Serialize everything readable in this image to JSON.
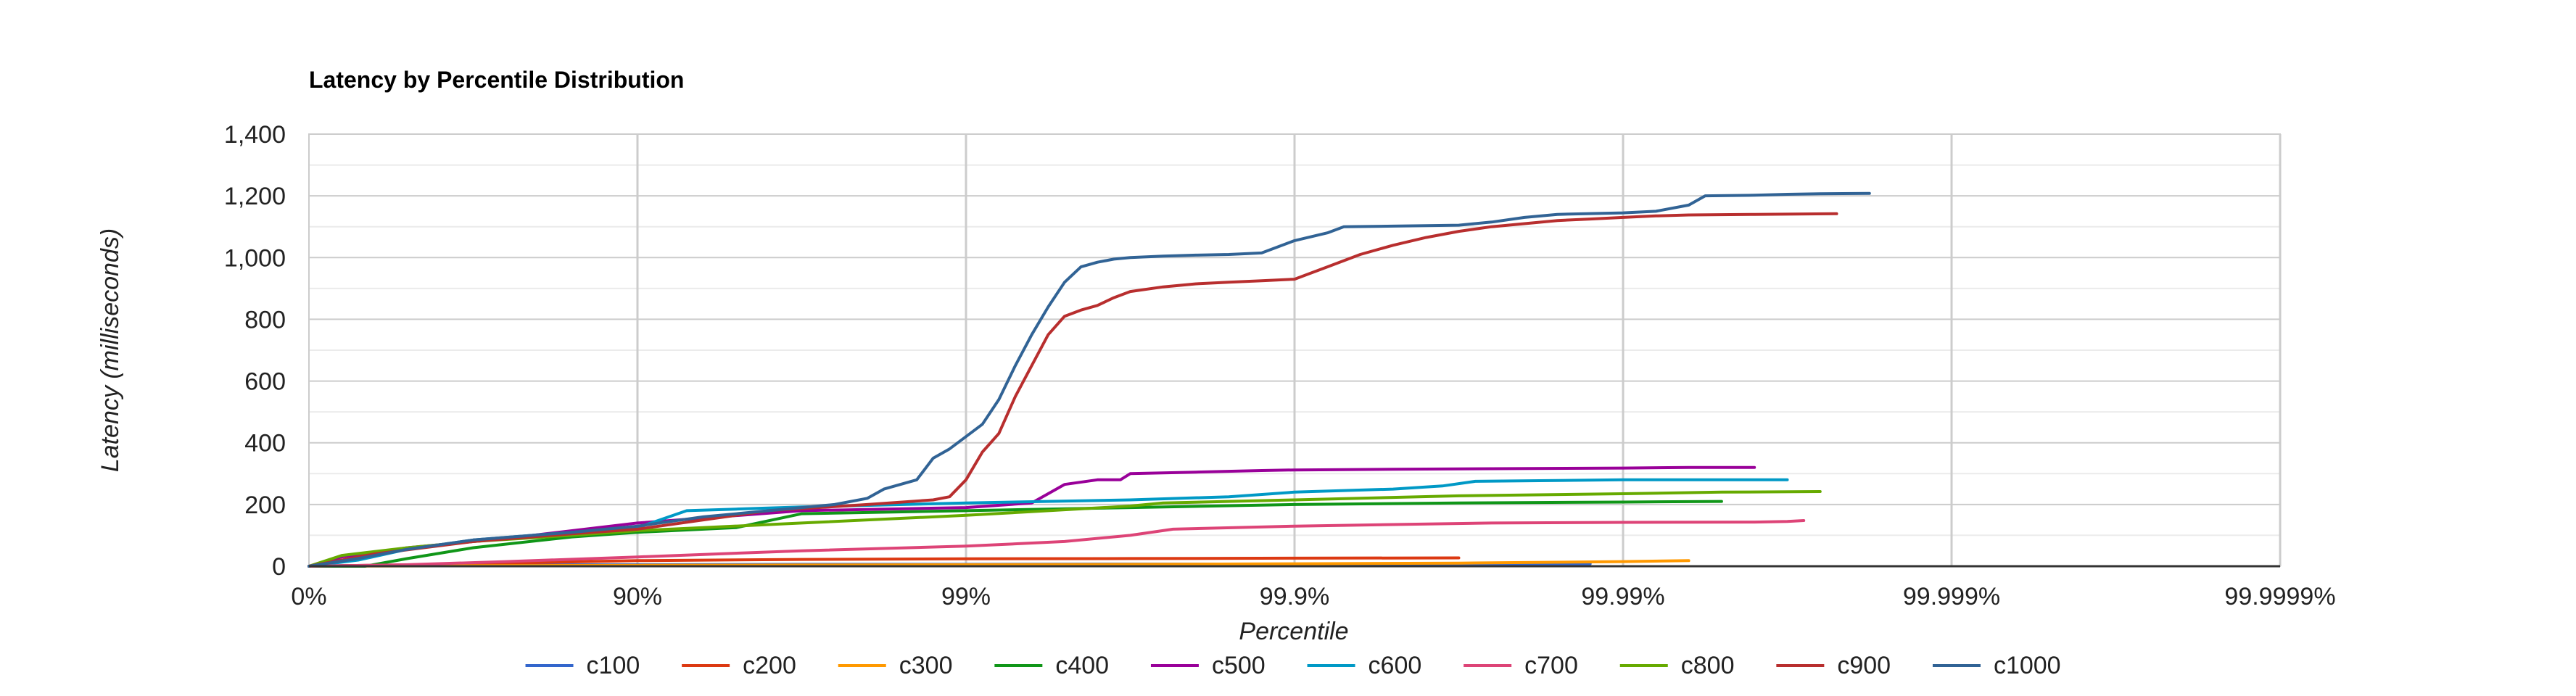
{
  "chart_data": {
    "type": "line",
    "title": "Latency by Percentile Distribution",
    "xlabel": "Percentile",
    "ylabel": "Latency (milliseconds)",
    "x_scale": "log-nines",
    "xlim": [
      0,
      6
    ],
    "ylim": [
      0,
      1400
    ],
    "x_ticks": [
      {
        "nines": 0,
        "label": "0%"
      },
      {
        "nines": 1,
        "label": "90%"
      },
      {
        "nines": 2,
        "label": "99%"
      },
      {
        "nines": 3,
        "label": "99.9%"
      },
      {
        "nines": 4,
        "label": "99.99%"
      },
      {
        "nines": 5,
        "label": "99.999%"
      },
      {
        "nines": 6,
        "label": "99.9999%"
      }
    ],
    "y_ticks": [
      {
        "value": 0,
        "label": "0"
      },
      {
        "value": 200,
        "label": "200"
      },
      {
        "value": 400,
        "label": "400"
      },
      {
        "value": 600,
        "label": "600"
      },
      {
        "value": 800,
        "label": "800"
      },
      {
        "value": 1000,
        "label": "1,000"
      },
      {
        "value": 1200,
        "label": "1,200"
      },
      {
        "value": 1400,
        "label": "1,400"
      }
    ],
    "grid": true,
    "legend_position": "bottom",
    "series": [
      {
        "name": "c100",
        "color": "#3366cc",
        "points": [
          [
            0,
            0
          ],
          [
            0.1,
            2
          ],
          [
            0.3,
            3
          ],
          [
            0.6,
            4
          ],
          [
            1.0,
            5
          ],
          [
            1.5,
            6
          ],
          [
            2.0,
            6
          ],
          [
            2.5,
            7
          ],
          [
            3.0,
            7
          ],
          [
            3.5,
            8
          ],
          [
            3.9,
            8
          ]
        ]
      },
      {
        "name": "c200",
        "color": "#dc3912",
        "points": [
          [
            0,
            0
          ],
          [
            0.2,
            3
          ],
          [
            0.5,
            8
          ],
          [
            0.8,
            14
          ],
          [
            1.0,
            18
          ],
          [
            1.5,
            22
          ],
          [
            2.0,
            24
          ],
          [
            2.5,
            25
          ],
          [
            3.0,
            26
          ],
          [
            3.5,
            27
          ]
        ]
      },
      {
        "name": "c300",
        "color": "#ff9900",
        "points": [
          [
            0,
            0
          ],
          [
            0.3,
            1
          ],
          [
            0.7,
            2
          ],
          [
            1.0,
            3
          ],
          [
            1.5,
            4
          ],
          [
            2.0,
            5
          ],
          [
            2.5,
            6
          ],
          [
            3.0,
            8
          ],
          [
            3.5,
            10
          ],
          [
            3.7,
            12
          ],
          [
            4.0,
            15
          ],
          [
            4.2,
            18
          ]
        ]
      },
      {
        "name": "c400",
        "color": "#109618",
        "points": [
          [
            0,
            0
          ],
          [
            0.17,
            0
          ],
          [
            0.3,
            25
          ],
          [
            0.5,
            60
          ],
          [
            0.8,
            95
          ],
          [
            1.0,
            110
          ],
          [
            1.3,
            125
          ],
          [
            1.5,
            170
          ],
          [
            2.0,
            180
          ],
          [
            2.5,
            190
          ],
          [
            3.0,
            200
          ],
          [
            3.5,
            205
          ],
          [
            4.0,
            208
          ],
          [
            4.3,
            210
          ]
        ]
      },
      {
        "name": "c500",
        "color": "#990099",
        "points": [
          [
            0,
            0
          ],
          [
            0.1,
            30
          ],
          [
            0.3,
            60
          ],
          [
            0.6,
            90
          ],
          [
            1.0,
            140
          ],
          [
            1.5,
            180
          ],
          [
            2.0,
            190
          ],
          [
            2.2,
            205
          ],
          [
            2.3,
            265
          ],
          [
            2.4,
            280
          ],
          [
            2.47,
            280
          ],
          [
            2.5,
            300
          ],
          [
            2.7,
            305
          ],
          [
            2.9,
            310
          ],
          [
            3.0,
            312
          ],
          [
            3.3,
            314
          ],
          [
            3.6,
            316
          ],
          [
            4.0,
            318
          ],
          [
            4.2,
            320
          ],
          [
            4.4,
            320
          ]
        ]
      },
      {
        "name": "c600",
        "color": "#0099c6",
        "points": [
          [
            0,
            0
          ],
          [
            0.15,
            20
          ],
          [
            0.3,
            55
          ],
          [
            0.5,
            85
          ],
          [
            0.8,
            110
          ],
          [
            1.0,
            125
          ],
          [
            1.15,
            180
          ],
          [
            1.3,
            185
          ],
          [
            1.5,
            192
          ],
          [
            2.0,
            205
          ],
          [
            2.5,
            215
          ],
          [
            2.8,
            225
          ],
          [
            3.0,
            240
          ],
          [
            3.3,
            250
          ],
          [
            3.45,
            260
          ],
          [
            3.55,
            275
          ],
          [
            3.8,
            278
          ],
          [
            4.0,
            280
          ],
          [
            4.3,
            280
          ],
          [
            4.5,
            280
          ]
        ]
      },
      {
        "name": "c700",
        "color": "#dd4477",
        "points": [
          [
            0,
            0
          ],
          [
            0.3,
            5
          ],
          [
            0.6,
            15
          ],
          [
            1.0,
            30
          ],
          [
            1.5,
            50
          ],
          [
            2.0,
            65
          ],
          [
            2.3,
            80
          ],
          [
            2.5,
            100
          ],
          [
            2.63,
            120
          ],
          [
            3.0,
            130
          ],
          [
            3.3,
            135
          ],
          [
            3.6,
            140
          ],
          [
            4.0,
            142
          ],
          [
            4.4,
            143
          ],
          [
            4.5,
            145
          ],
          [
            4.55,
            148
          ]
        ]
      },
      {
        "name": "c800",
        "color": "#66aa00",
        "points": [
          [
            0,
            0
          ],
          [
            0.1,
            35
          ],
          [
            0.3,
            60
          ],
          [
            0.5,
            80
          ],
          [
            0.8,
            100
          ],
          [
            1.0,
            115
          ],
          [
            1.5,
            140
          ],
          [
            2.0,
            165
          ],
          [
            2.5,
            195
          ],
          [
            2.6,
            205
          ],
          [
            3.0,
            215
          ],
          [
            3.5,
            228
          ],
          [
            4.0,
            235
          ],
          [
            4.3,
            240
          ],
          [
            4.6,
            242
          ]
        ]
      },
      {
        "name": "c900",
        "color": "#b82e2e",
        "points": [
          [
            0,
            0
          ],
          [
            0.2,
            40
          ],
          [
            0.5,
            80
          ],
          [
            0.8,
            105
          ],
          [
            1.0,
            120
          ],
          [
            1.2,
            150
          ],
          [
            1.4,
            180
          ],
          [
            1.7,
            200
          ],
          [
            1.9,
            215
          ],
          [
            1.95,
            225
          ],
          [
            2.0,
            280
          ],
          [
            2.05,
            370
          ],
          [
            2.1,
            430
          ],
          [
            2.15,
            550
          ],
          [
            2.2,
            650
          ],
          [
            2.25,
            750
          ],
          [
            2.3,
            810
          ],
          [
            2.35,
            830
          ],
          [
            2.4,
            845
          ],
          [
            2.45,
            870
          ],
          [
            2.5,
            890
          ],
          [
            2.6,
            905
          ],
          [
            2.7,
            915
          ],
          [
            2.8,
            920
          ],
          [
            2.9,
            925
          ],
          [
            3.0,
            930
          ],
          [
            3.1,
            970
          ],
          [
            3.2,
            1010
          ],
          [
            3.3,
            1040
          ],
          [
            3.4,
            1065
          ],
          [
            3.5,
            1085
          ],
          [
            3.6,
            1100
          ],
          [
            3.7,
            1110
          ],
          [
            3.8,
            1120
          ],
          [
            3.9,
            1125
          ],
          [
            4.0,
            1130
          ],
          [
            4.1,
            1135
          ],
          [
            4.2,
            1138
          ],
          [
            4.4,
            1140
          ],
          [
            4.65,
            1142
          ]
        ]
      },
      {
        "name": "c1000",
        "color": "#316395",
        "points": [
          [
            0,
            0
          ],
          [
            0.15,
            25
          ],
          [
            0.3,
            55
          ],
          [
            0.5,
            85
          ],
          [
            0.8,
            110
          ],
          [
            1.0,
            130
          ],
          [
            1.2,
            160
          ],
          [
            1.4,
            180
          ],
          [
            1.6,
            200
          ],
          [
            1.7,
            220
          ],
          [
            1.75,
            250
          ],
          [
            1.85,
            280
          ],
          [
            1.9,
            350
          ],
          [
            1.95,
            380
          ],
          [
            2.0,
            420
          ],
          [
            2.05,
            460
          ],
          [
            2.1,
            540
          ],
          [
            2.15,
            650
          ],
          [
            2.2,
            750
          ],
          [
            2.25,
            840
          ],
          [
            2.3,
            920
          ],
          [
            2.35,
            970
          ],
          [
            2.4,
            985
          ],
          [
            2.45,
            995
          ],
          [
            2.5,
            1000
          ],
          [
            2.6,
            1005
          ],
          [
            2.7,
            1008
          ],
          [
            2.8,
            1010
          ],
          [
            2.9,
            1015
          ],
          [
            3.0,
            1055
          ],
          [
            3.1,
            1080
          ],
          [
            3.15,
            1100
          ],
          [
            3.3,
            1102
          ],
          [
            3.5,
            1105
          ],
          [
            3.6,
            1115
          ],
          [
            3.7,
            1130
          ],
          [
            3.8,
            1140
          ],
          [
            4.0,
            1145
          ],
          [
            4.1,
            1150
          ],
          [
            4.2,
            1170
          ],
          [
            4.25,
            1200
          ],
          [
            4.4,
            1202
          ],
          [
            4.5,
            1205
          ],
          [
            4.6,
            1207
          ],
          [
            4.75,
            1208
          ]
        ]
      }
    ]
  }
}
